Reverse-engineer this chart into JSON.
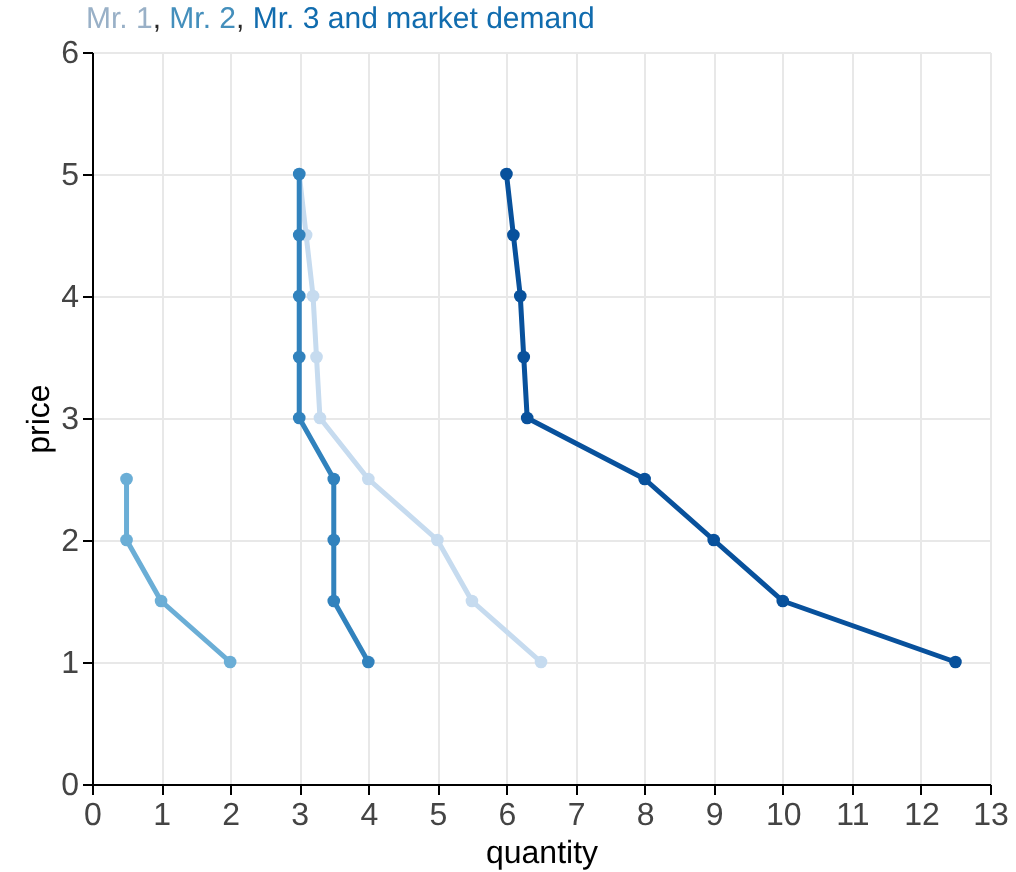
{
  "chart_data": {
    "type": "line",
    "title": "Mr. 1, Mr. 2, Mr. 3 and market demand",
    "xlabel": "quantity",
    "ylabel": "price",
    "series": [
      {
        "color": "#c6dbef",
        "x": [
          3,
          3.1,
          3.2,
          3.25,
          3.3,
          4,
          5,
          5.5,
          6.5
        ],
        "values": [
          5,
          4.5,
          4,
          3.5,
          3,
          2.5,
          2,
          1.5,
          1
        ]
      },
      {
        "color": "#6baed6",
        "x": [
          0.5,
          0.5,
          1,
          2
        ],
        "values": [
          2.5,
          2,
          1.5,
          1
        ]
      },
      {
        "color": "#3182bd",
        "x": [
          3,
          3,
          3,
          3,
          3,
          3.5,
          3.5,
          3.5,
          4
        ],
        "values": [
          5,
          4.5,
          4,
          3.5,
          3,
          2.5,
          2,
          1.5,
          1
        ]
      },
      {
        "color": "#08519c",
        "x": [
          6,
          6.1,
          6.2,
          6.25,
          6.3,
          8,
          9,
          10,
          12.5
        ],
        "values": [
          5,
          4.5,
          4,
          3.5,
          3,
          2.5,
          2,
          1.5,
          1
        ]
      }
    ],
    "xlim": [
      0,
      13
    ],
    "xticks": [
      0,
      1,
      2,
      3,
      4,
      5,
      6,
      7,
      8,
      9,
      10,
      11,
      12,
      13
    ],
    "ylim": [
      0,
      6
    ],
    "yticks": [
      0,
      1,
      2,
      3,
      4,
      5,
      6
    ],
    "grid": true,
    "marker": "circle",
    "line_style": "solid"
  }
}
